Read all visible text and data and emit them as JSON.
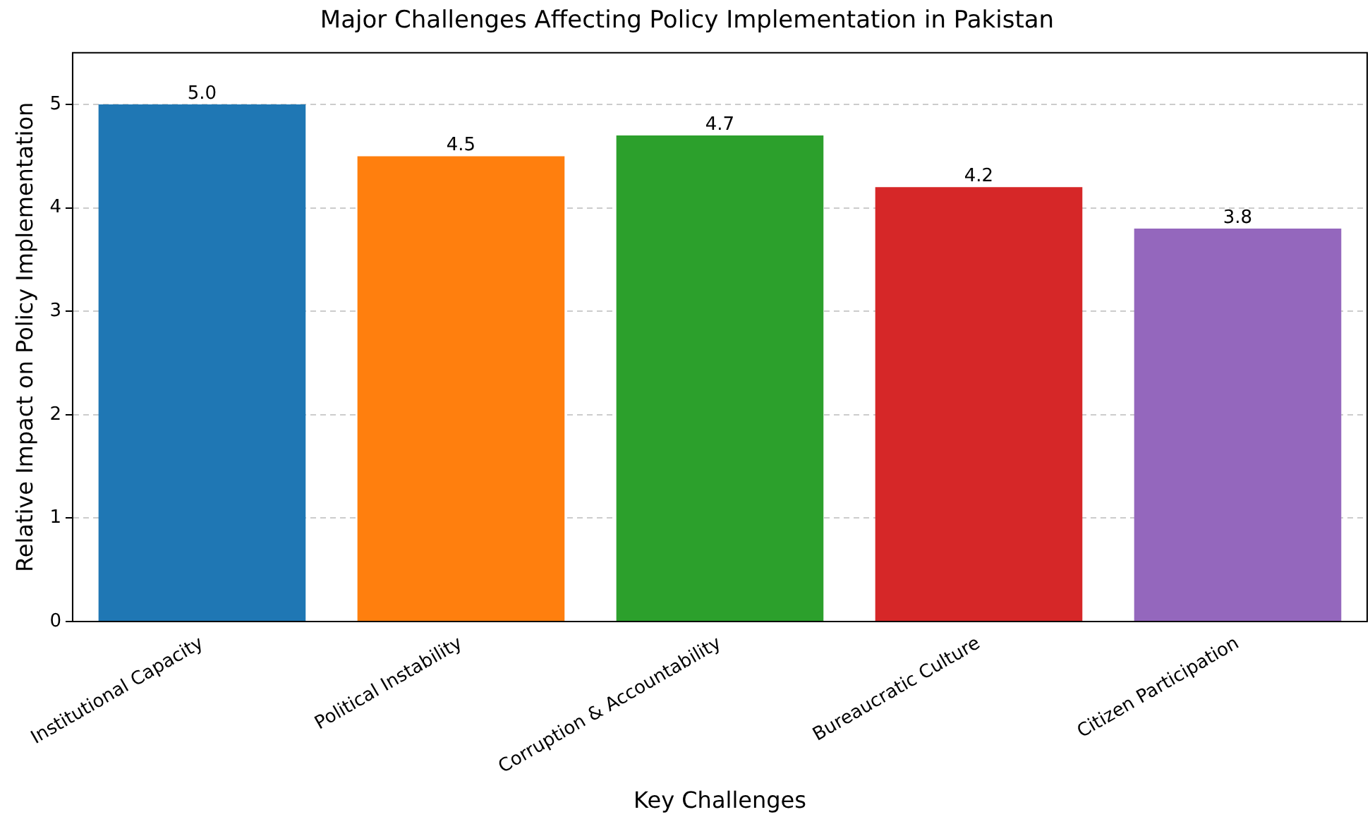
{
  "chart_data": {
    "type": "bar",
    "title": "Major Challenges Affecting Policy Implementation in Pakistan",
    "xlabel": "Key Challenges",
    "ylabel": "Relative Impact on Policy Implementation",
    "categories": [
      "Institutional Capacity",
      "Political Instability",
      "Corruption & Accountability",
      "Bureaucratic Culture",
      "Citizen Participation"
    ],
    "values": [
      5.0,
      4.5,
      4.7,
      4.2,
      3.8
    ],
    "value_labels": [
      "5.0",
      "4.5",
      "4.7",
      "4.2",
      "3.8"
    ],
    "colors": [
      "#1f77b4",
      "#ff7f0e",
      "#2ca02c",
      "#d62728",
      "#9467bd"
    ],
    "ylim": [
      0,
      5.5
    ],
    "yticks": [
      0,
      1,
      2,
      3,
      4,
      5
    ],
    "grid": "y"
  }
}
